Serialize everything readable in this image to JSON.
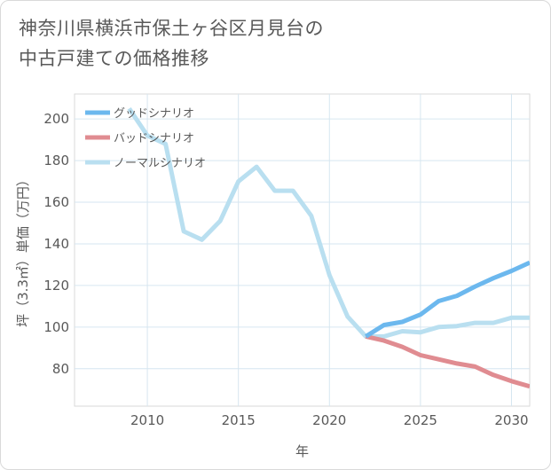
{
  "title": {
    "line1": "神奈川県横浜市保土ヶ谷区月見台の",
    "line2": "中古戸建ての価格推移"
  },
  "chart_data": {
    "type": "line",
    "title": "神奈川県横浜市保土ヶ谷区月見台の中古戸建ての価格推移",
    "xlabel": "年",
    "ylabel": "坪（3.3㎡）単価（万円）",
    "xlim": [
      2006,
      2031
    ],
    "ylim": [
      62,
      212
    ],
    "xticks": [
      2010,
      2015,
      2020,
      2025,
      2030
    ],
    "yticks": [
      80,
      100,
      120,
      140,
      160,
      180,
      200
    ],
    "grid": true,
    "legend_position": "top-left",
    "series": [
      {
        "name": "グッドシナリオ",
        "color": "#6cb8ee",
        "x": [
          2022,
          2023,
          2024,
          2025,
          2026,
          2027,
          2028,
          2029,
          2030,
          2031
        ],
        "y": [
          95.5,
          101,
          102.5,
          106,
          112.5,
          115,
          119.5,
          123.5,
          127,
          131
        ]
      },
      {
        "name": "バッドシナリオ",
        "color": "#e08c91",
        "x": [
          2022,
          2023,
          2024,
          2025,
          2026,
          2027,
          2028,
          2029,
          2030,
          2031
        ],
        "y": [
          95.5,
          93.5,
          90.5,
          86.5,
          84.5,
          82.5,
          81,
          77,
          74,
          71.5
        ]
      },
      {
        "name": "ノーマルシナリオ",
        "color": "#b9dff0",
        "x": [
          2009,
          2010,
          2011,
          2012,
          2013,
          2014,
          2015,
          2016,
          2017,
          2018,
          2019,
          2020,
          2021,
          2022,
          2023,
          2024,
          2025,
          2026,
          2027,
          2028,
          2029,
          2030,
          2031
        ],
        "y": [
          205,
          192,
          188,
          146,
          142,
          151,
          170,
          177,
          165.5,
          165.5,
          153.5,
          125,
          105,
          95.5,
          95.5,
          98,
          97.5,
          100,
          100.5,
          102,
          102,
          104.5,
          104.5
        ]
      }
    ]
  }
}
